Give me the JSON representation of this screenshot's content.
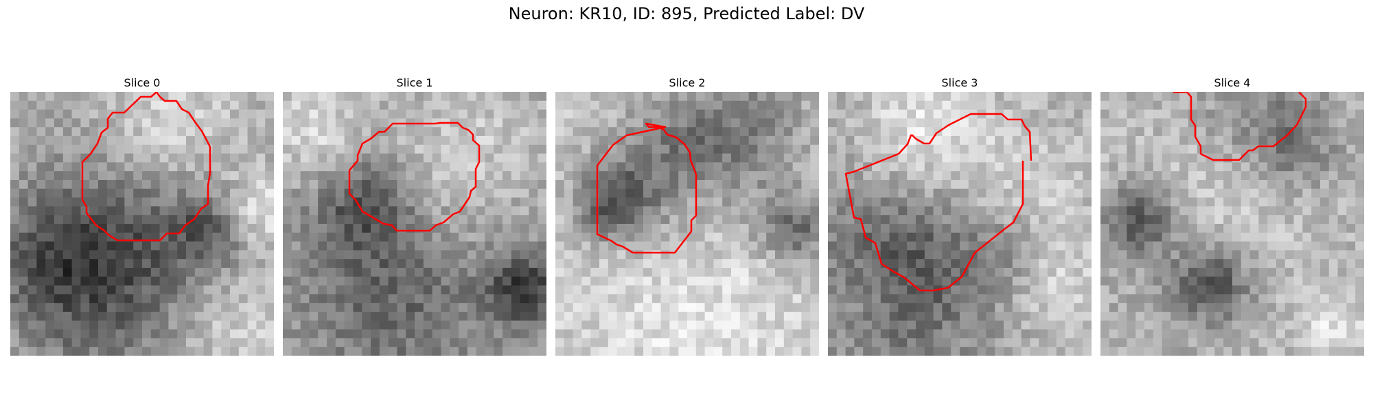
{
  "figure": {
    "suptitle": "Neuron: KR10, ID: 895, Predicted Label: DV",
    "contour_color": "#ff0000",
    "colormap": "gray"
  },
  "panels": [
    {
      "title": "Slice 0",
      "contour_closed": true
    },
    {
      "title": "Slice 1",
      "contour_closed": true
    },
    {
      "title": "Slice 2",
      "contour_closed": true
    },
    {
      "title": "Slice 3",
      "contour_closed": false
    },
    {
      "title": "Slice 4",
      "contour_closed": false
    }
  ]
}
